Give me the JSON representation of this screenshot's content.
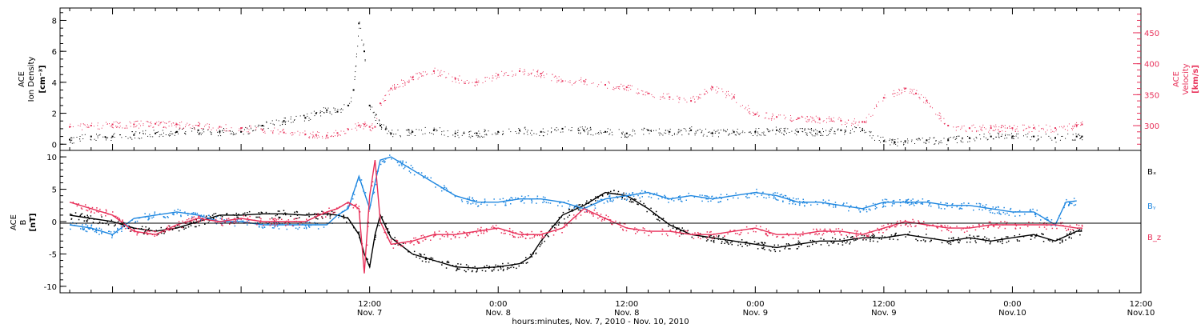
{
  "colors": {
    "black": "#000000",
    "red": "#e8315a",
    "blue": "#1f87e0",
    "frame": "#000000"
  },
  "chart_data": [
    {
      "type": "scatter",
      "panel": "top",
      "ylabel_left": [
        "ACE",
        "Ion Density",
        "[cm⁻³]"
      ],
      "ylabel_right": [
        "ACE",
        "Velocity",
        "[km/s]"
      ],
      "yticks_left": [
        "0",
        "2",
        "4",
        "6",
        "8"
      ],
      "yticks_right": [
        "300",
        "350",
        "400",
        "450"
      ],
      "ylim_left": [
        -0.4,
        8.8
      ],
      "ylim_right": [
        260,
        490
      ],
      "xlim_hours": [
        -16.9,
        84
      ],
      "series": [
        {
          "axis": "left",
          "color": "black",
          "x": [
            -16,
            -14,
            -12,
            -10,
            -8,
            -6,
            -4,
            -2,
            0,
            2,
            4,
            6,
            7,
            8,
            9,
            10,
            10.5,
            11,
            11.5,
            12,
            13,
            14,
            16,
            18,
            20,
            22,
            24,
            26,
            28,
            30,
            32,
            34,
            36,
            38,
            40,
            42,
            44,
            46,
            48,
            50,
            52,
            54,
            56,
            58,
            60,
            61,
            62,
            64,
            66,
            68,
            70,
            72,
            74,
            76,
            78,
            78.5
          ],
          "y": [
            0.3,
            0.5,
            0.5,
            0.6,
            0.7,
            0.8,
            0.9,
            0.8,
            0.8,
            1.2,
            1.5,
            1.7,
            2.0,
            2.2,
            2.1,
            2.5,
            3.5,
            7.8,
            6.0,
            2.5,
            1.2,
            0.7,
            0.8,
            0.9,
            0.7,
            0.7,
            0.8,
            0.9,
            0.8,
            1.0,
            0.9,
            0.8,
            0.7,
            0.9,
            0.8,
            0.9,
            0.7,
            0.8,
            0.8,
            0.9,
            0.8,
            0.8,
            0.9,
            0.9,
            0.2,
            0.15,
            0.2,
            0.25,
            0.25,
            0.4,
            0.5,
            0.5,
            0.5,
            0.4,
            0.5,
            0.5
          ]
        },
        {
          "axis": "right",
          "color": "red",
          "x": [
            -16,
            -14,
            -12,
            -10,
            -8,
            -6,
            -4,
            -2,
            0,
            2,
            4,
            6,
            7,
            8,
            9,
            10,
            11,
            11.5,
            12,
            12.5,
            13,
            14,
            16,
            18,
            20,
            22,
            24,
            26,
            28,
            30,
            32,
            34,
            36,
            38,
            40,
            42,
            44,
            46,
            48,
            50,
            52,
            54,
            56,
            58,
            58.2,
            60,
            62,
            63,
            64,
            66,
            68,
            70,
            72,
            74,
            76,
            78,
            78.5
          ],
          "y": [
            298,
            300,
            302,
            302,
            303,
            302,
            300,
            298,
            296,
            293,
            289,
            286,
            285,
            284,
            288,
            294,
            300,
            302,
            298,
            298,
            336,
            360,
            378,
            388,
            376,
            370,
            382,
            388,
            384,
            372,
            372,
            366,
            362,
            352,
            346,
            340,
            362,
            346,
            318,
            314,
            312,
            310,
            308,
            306,
            306,
            345,
            360,
            352,
            340,
            300,
            296,
            296,
            296,
            296,
            296,
            300,
            302
          ]
        }
      ]
    },
    {
      "type": "line",
      "panel": "bottom",
      "ylabel": [
        "ACE",
        "B",
        "[nT]"
      ],
      "yticks": [
        "-10",
        "-5",
        "0",
        "5",
        "10"
      ],
      "ylim": [
        -11,
        11
      ],
      "xlim_hours": [
        -16.9,
        84
      ],
      "series": [
        {
          "name": "Bₓ",
          "color": "black",
          "x": [
            -16,
            -14,
            -12,
            -10,
            -8,
            -6,
            -4,
            -2,
            0,
            2,
            4,
            6,
            8,
            9,
            10,
            11,
            11.5,
            12,
            12.5,
            13,
            14,
            16,
            18,
            20,
            22,
            24,
            26,
            27,
            28,
            30,
            32,
            34,
            36,
            38,
            40,
            42,
            44,
            46,
            48,
            50,
            52,
            54,
            56,
            58,
            60,
            62,
            64,
            66,
            68,
            70,
            72,
            74,
            76,
            78,
            78.5
          ],
          "y": [
            1.0,
            0.5,
            0.0,
            -1.0,
            -1.5,
            -1.0,
            0.0,
            1.0,
            1.0,
            1.2,
            1.2,
            1.0,
            1.2,
            1.0,
            0.5,
            -2.0,
            -5.0,
            -7.0,
            -2.0,
            1.0,
            -2.5,
            -5.0,
            -6.0,
            -7.0,
            -7.2,
            -7.0,
            -6.5,
            -5.5,
            -3.0,
            1.0,
            2.5,
            4.5,
            4.0,
            2.0,
            -0.5,
            -2.0,
            -2.5,
            -3.0,
            -3.5,
            -4.0,
            -3.5,
            -3.0,
            -3.0,
            -2.5,
            -2.5,
            -2.0,
            -2.5,
            -3.0,
            -2.5,
            -3.0,
            -2.5,
            -2.0,
            -3.0,
            -1.5,
            -1.5
          ]
        },
        {
          "name": "Bᵧ",
          "color": "blue",
          "x": [
            -16,
            -14,
            -12,
            -10,
            -8,
            -6,
            -4,
            -2,
            0,
            2,
            4,
            6,
            8,
            9,
            10,
            11,
            12,
            12.5,
            13,
            14,
            15,
            16,
            18,
            20,
            22,
            24,
            26,
            28,
            30,
            32,
            34,
            36,
            38,
            40,
            42,
            44,
            46,
            48,
            50,
            52,
            54,
            56,
            58,
            60,
            62,
            64,
            66,
            68,
            70,
            72,
            74,
            76,
            77,
            78
          ],
          "y": [
            -0.5,
            -1.0,
            -2.0,
            0.5,
            1.0,
            1.5,
            1.0,
            0.0,
            0.0,
            -0.5,
            -0.5,
            -0.5,
            -0.5,
            1.0,
            2.0,
            7.0,
            2.0,
            6.0,
            9.5,
            10.0,
            9.0,
            8.0,
            6.0,
            4.0,
            3.0,
            3.0,
            3.5,
            3.5,
            3.0,
            2.0,
            3.5,
            4.0,
            4.5,
            3.5,
            4.0,
            3.5,
            4.0,
            4.5,
            4.0,
            3.0,
            3.0,
            2.5,
            2.0,
            3.0,
            3.0,
            3.0,
            2.5,
            2.5,
            2.0,
            1.5,
            1.5,
            -0.5,
            3.0,
            3.2
          ]
        },
        {
          "name": "B_z",
          "color": "red",
          "x": [
            -16,
            -14,
            -12,
            -10,
            -8,
            -6,
            -4,
            -2,
            0,
            2,
            4,
            6,
            8,
            9,
            10,
            11,
            11.5,
            12,
            12.5,
            13,
            14,
            16,
            18,
            20,
            22,
            24,
            26,
            28,
            30,
            32,
            34,
            36,
            38,
            40,
            42,
            44,
            46,
            48,
            50,
            52,
            54,
            56,
            58,
            60,
            62,
            64,
            66,
            68,
            70,
            72,
            74,
            76,
            78,
            78.5
          ],
          "y": [
            3.0,
            2.0,
            1.0,
            -1.5,
            -2.0,
            -0.5,
            0.5,
            0.0,
            0.5,
            0.0,
            0.0,
            0.0,
            1.5,
            2.0,
            3.0,
            2.0,
            -8.0,
            4.0,
            9.5,
            0.0,
            -3.5,
            -3.0,
            -2.0,
            -2.0,
            -1.5,
            -1.0,
            -2.0,
            -2.0,
            -1.0,
            2.0,
            0.5,
            -1.0,
            -1.5,
            -1.5,
            -2.0,
            -2.0,
            -1.5,
            -1.0,
            -2.0,
            -2.0,
            -1.5,
            -1.5,
            -2.0,
            -1.0,
            0.0,
            -0.5,
            -1.0,
            -1.0,
            -0.5,
            -0.5,
            -0.5,
            -0.5,
            -1.0,
            -1.0
          ]
        }
      ]
    }
  ],
  "x_axis": {
    "ticks": [
      {
        "hours": 12,
        "time": "12:00",
        "date": "Nov. 7"
      },
      {
        "hours": 24,
        "time": "0:00",
        "date": "Nov. 8"
      },
      {
        "hours": 36,
        "time": "12:00",
        "date": "Nov. 8"
      },
      {
        "hours": 48,
        "time": "0:00",
        "date": "Nov. 9"
      },
      {
        "hours": 60,
        "time": "12:00",
        "date": "Nov. 9"
      },
      {
        "hours": 72,
        "time": "0:00",
        "date": "Nov.10"
      },
      {
        "hours": 84,
        "time": "12:00",
        "date": "Nov.10"
      }
    ],
    "label": "hours:minutes, Nov.  7, 2010 - Nov. 10, 2010"
  }
}
